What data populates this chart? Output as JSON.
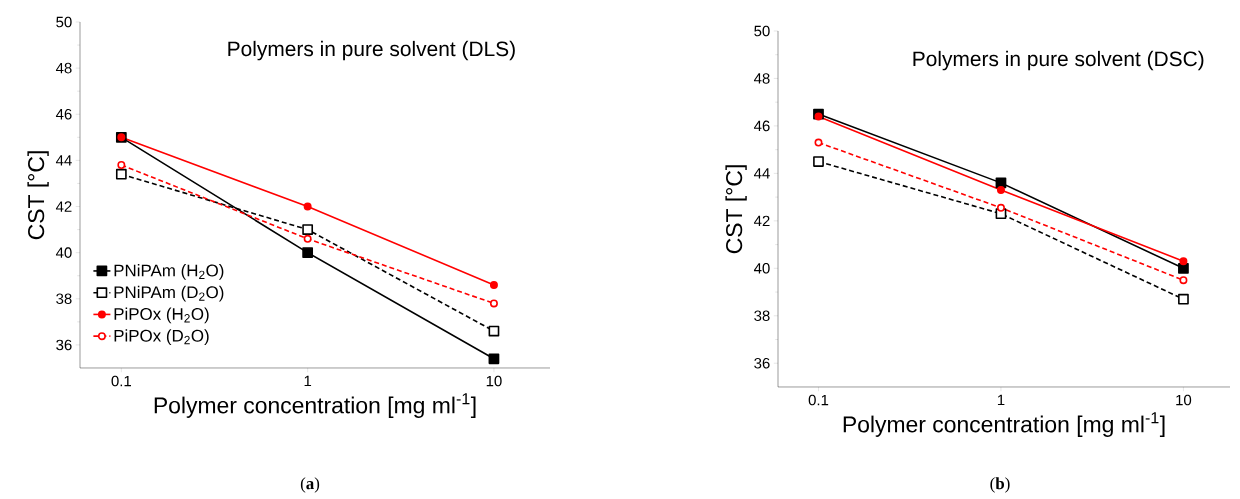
{
  "chart_data": [
    {
      "type": "line",
      "title": "Polymers in pure solvent (DLS)",
      "xlabel": "Polymer concentration [mg ml$^{-1}$]",
      "ylabel": "CST [°C]",
      "annotations": [
        "(**a**)"
      ],
      "x": [
        0.1,
        1,
        10
      ],
      "log": "x",
      "xlim": [
        0.06,
        20
      ],
      "xticks": [
        0.1,
        1,
        10
      ],
      "ylim": [
        35,
        50
      ],
      "yticks": [
        36,
        38,
        40,
        42,
        44,
        46,
        48,
        50
      ],
      "legend": "bottom left",
      "series": [
        {
          "name": "PNiPAm (H$_{2}$O)",
          "color": "#000000",
          "marker": "square",
          "line_style": "solid",
          "values": [
            45.0,
            40.0,
            35.4
          ]
        },
        {
          "name": "PNiPAm (D$_{2}$O)",
          "color": "#000000",
          "marker": "square",
          "line_style": "dashed",
          "values": [
            43.4,
            41.0,
            36.6
          ]
        },
        {
          "name": "PiPOx (H$_{2}$O)",
          "color": "#ff0000",
          "marker": "circle",
          "line_style": "solid",
          "values": [
            45.0,
            42.0,
            38.6
          ]
        },
        {
          "name": "PiPOx (D$_{2}$O)",
          "color": "#ff0000",
          "marker": "circle",
          "line_style": "dashed",
          "values": [
            43.8,
            40.6,
            37.8
          ]
        }
      ]
    },
    {
      "type": "line",
      "title": "Polymers in pure solvent (DSC)",
      "xlabel": "Polymer concentration [mg ml$^{-1}$]",
      "ylabel": "CST [°C]",
      "annotations": [
        "(**b**)"
      ],
      "x": [
        0.1,
        1,
        10
      ],
      "log": "x",
      "xlim": [
        0.06,
        18
      ],
      "xticks": [
        0.1,
        1,
        10
      ],
      "ylim": [
        35,
        50
      ],
      "yticks": [
        36,
        38,
        40,
        42,
        44,
        46,
        48,
        50
      ],
      "series": [
        {
          "color": "#000000",
          "marker": "square",
          "line_style": "solid",
          "values": [
            46.5,
            43.6,
            40.0
          ]
        },
        {
          "color": "#000000",
          "marker": "square",
          "line_style": "dashed",
          "values": [
            44.5,
            42.3,
            38.7
          ]
        },
        {
          "color": "#ff0000",
          "marker": "circle",
          "line_style": "solid",
          "values": [
            46.4,
            43.3,
            40.3
          ]
        },
        {
          "color": "#ff0000",
          "marker": "circle",
          "line_style": "dashed",
          "values": [
            45.3,
            42.55,
            39.5
          ]
        }
      ]
    }
  ]
}
